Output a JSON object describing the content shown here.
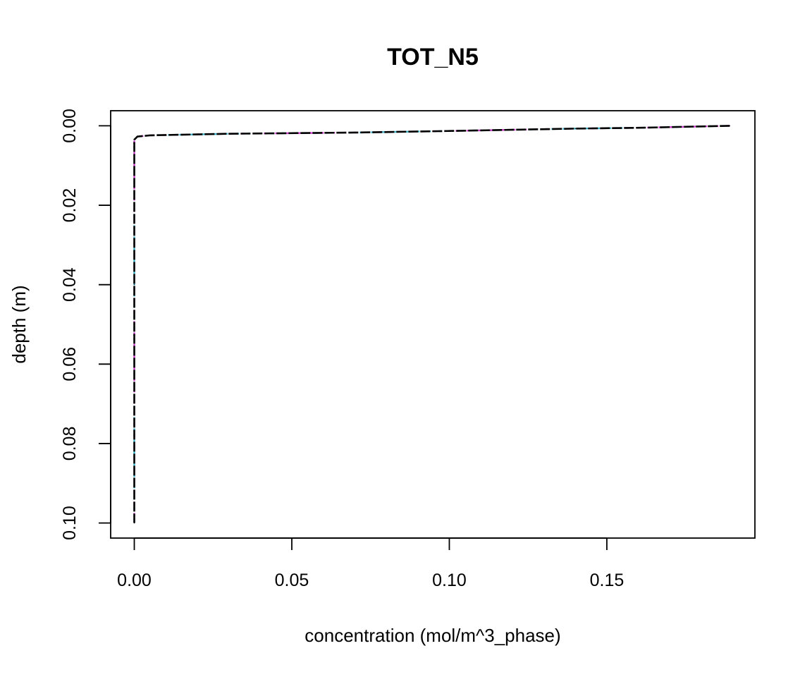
{
  "chart_data": {
    "type": "line",
    "title": "TOT_N5",
    "xlabel": "concentration (mol/m^3_phase)",
    "ylabel": "depth (m)",
    "xlim": [
      -0.0075,
      0.197
    ],
    "ylim": [
      0.1038,
      -0.0038
    ],
    "y_axis_inverted": true,
    "grid": false,
    "x_ticks": [
      0.0,
      0.05,
      0.1,
      0.15
    ],
    "x_tick_labels": [
      "0.00",
      "0.05",
      "0.10",
      "0.15"
    ],
    "y_ticks": [
      0.0,
      0.02,
      0.04,
      0.06,
      0.08,
      0.1
    ],
    "y_tick_labels": [
      "0.00",
      "0.02",
      "0.04",
      "0.06",
      "0.08",
      "0.10"
    ],
    "series": [
      {
        "line_style": "dashed",
        "color": "#000000",
        "underlay_colors": [
          "#d33fd3",
          "#3fb8d3"
        ],
        "points": [
          {
            "x": 0.189,
            "y": 0.0
          },
          {
            "x": 0.16,
            "y": 0.0005
          },
          {
            "x": 0.14,
            "y": 0.0007
          },
          {
            "x": 0.1,
            "y": 0.0013
          },
          {
            "x": 0.07,
            "y": 0.0017
          },
          {
            "x": 0.03,
            "y": 0.002
          },
          {
            "x": 0.005,
            "y": 0.0024
          },
          {
            "x": 0.001,
            "y": 0.0027
          },
          {
            "x": 0.0,
            "y": 0.0035
          },
          {
            "x": 0.0,
            "y": 0.02
          },
          {
            "x": 0.0,
            "y": 0.04
          },
          {
            "x": 0.0,
            "y": 0.06
          },
          {
            "x": 0.0,
            "y": 0.08
          },
          {
            "x": 0.0,
            "y": 0.1
          }
        ]
      }
    ]
  }
}
